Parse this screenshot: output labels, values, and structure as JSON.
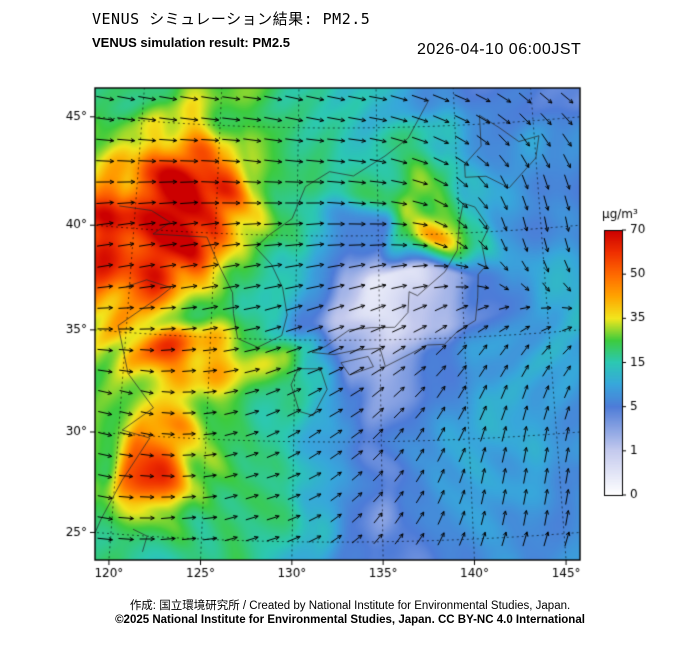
{
  "header": {
    "title_jp": "VENUS シミュレーション結果: PM2.5",
    "title_en": "VENUS simulation result: PM2.5",
    "datetime": "2026-04-10 06:00JST"
  },
  "footer": {
    "credit": "作成: 国立環境研究所 / Created by National Institute for Environmental Studies, Japan.",
    "license": "©2025 National Institute for Environmental Studies, Japan. CC BY-NC 4.0 International"
  },
  "colorbar": {
    "unit": "μg/m³",
    "levels": [
      0,
      1,
      5,
      15,
      35,
      50,
      70
    ]
  },
  "axes": {
    "lon_ticks": [
      120,
      125,
      130,
      135,
      140,
      145
    ],
    "lat_ticks": [
      25,
      30,
      35,
      40,
      45
    ],
    "degree_symbol": "°"
  },
  "map": {
    "projection": {
      "type": "lambert-conformal-conic",
      "lat1": 20,
      "lat2": 20,
      "lon0": 132.5,
      "lat0": 35
    },
    "extent": {
      "lon_min": 119.2,
      "lon_max": 145.8,
      "lat_min": 24.1,
      "lat_max": 46.8
    },
    "coastlines": [
      [
        [
          119,
          41
        ],
        [
          121,
          40.9
        ],
        [
          122.2,
          40.4
        ],
        [
          121.2,
          39.8
        ],
        [
          123.3,
          39.8
        ],
        [
          124.5,
          39.8
        ],
        [
          125.3,
          38.5
        ],
        [
          126.2,
          37.2
        ],
        [
          126.3,
          36.2
        ],
        [
          126.6,
          35
        ],
        [
          127.8,
          34.6
        ],
        [
          129.2,
          35.2
        ],
        [
          129.5,
          36.2
        ],
        [
          129.2,
          37.5
        ],
        [
          128.5,
          38.6
        ],
        [
          127.5,
          39.4
        ],
        [
          128.3,
          40
        ],
        [
          129.7,
          40.8
        ],
        [
          130.5,
          42.3
        ],
        [
          132,
          43
        ],
        [
          133.5,
          42.8
        ],
        [
          135.5,
          43.7
        ],
        [
          137,
          44.5
        ],
        [
          138.4,
          46.2
        ]
      ],
      [
        [
          119.8,
          37.2
        ],
        [
          121,
          37.6
        ],
        [
          122.5,
          37.3
        ],
        [
          121.8,
          36.8
        ],
        [
          119.5,
          35.3
        ],
        [
          120.3,
          33
        ],
        [
          121.9,
          31.4
        ],
        [
          120.2,
          30.2
        ],
        [
          121.8,
          29.9
        ],
        [
          120.4,
          27.7
        ],
        [
          119.4,
          25.7
        ],
        [
          118.9,
          24.4
        ]
      ],
      [
        [
          130.2,
          33.6
        ],
        [
          129.8,
          32.8
        ],
        [
          130.3,
          31.5
        ],
        [
          131.1,
          31.3
        ],
        [
          131.9,
          32.6
        ],
        [
          131.5,
          33.6
        ],
        [
          130.2,
          33.6
        ]
      ],
      [
        [
          132.7,
          33.9
        ],
        [
          134.3,
          34.2
        ],
        [
          134.6,
          33.7
        ],
        [
          133.2,
          33.3
        ],
        [
          132.7,
          33.9
        ]
      ],
      [
        [
          131,
          34.4
        ],
        [
          132.3,
          34.3
        ],
        [
          133.5,
          34.5
        ],
        [
          135,
          34.6
        ],
        [
          135.3,
          33.7
        ],
        [
          136.8,
          34.3
        ],
        [
          137.8,
          34.7
        ],
        [
          138.8,
          34.7
        ],
        [
          139.6,
          35.3
        ],
        [
          140.7,
          35.8
        ],
        [
          140.9,
          36.9
        ],
        [
          141,
          38
        ],
        [
          141.5,
          38.4
        ],
        [
          141.3,
          39.5
        ],
        [
          141.8,
          40.2
        ],
        [
          141,
          41.2
        ],
        [
          140.3,
          41.4
        ],
        [
          140,
          40.5
        ],
        [
          139.8,
          39.2
        ],
        [
          139,
          38.2
        ],
        [
          137.3,
          37.1
        ],
        [
          136.8,
          37.3
        ],
        [
          136.7,
          36.3
        ],
        [
          135.9,
          35.6
        ],
        [
          134.5,
          35.6
        ],
        [
          133.2,
          35.5
        ],
        [
          131.8,
          34.7
        ],
        [
          131,
          34.4
        ]
      ],
      [
        [
          140.5,
          42.6
        ],
        [
          141.8,
          42.6
        ],
        [
          143.2,
          42
        ],
        [
          145,
          43.3
        ],
        [
          145.3,
          44.3
        ],
        [
          144,
          44.1
        ],
        [
          142.8,
          44.8
        ],
        [
          141.6,
          45.4
        ],
        [
          141.6,
          44
        ],
        [
          140.5,
          43.2
        ],
        [
          140.5,
          42.6
        ]
      ],
      [
        [
          121.2,
          25.3
        ],
        [
          122,
          25
        ],
        [
          121.8,
          24.2
        ]
      ]
    ]
  },
  "chart_data": {
    "type": "heatmap",
    "title": "VENUS simulation result: PM2.5",
    "datetime": "2026-04-10 06:00JST",
    "units": "μg/m³",
    "grid": {
      "lon_start": 119,
      "lon_step": 2,
      "lat_start": 24,
      "lat_step": 2,
      "ncols": 15,
      "nrows": 12,
      "row_order": "south-to-north"
    },
    "pm25": {
      "name": "PM2.5 concentration",
      "values": [
        [
          20,
          18,
          16,
          18,
          20,
          15,
          10,
          6,
          4,
          5,
          7,
          8,
          6,
          8,
          10
        ],
        [
          24,
          32,
          28,
          20,
          22,
          18,
          12,
          5,
          3,
          5,
          8,
          10,
          8,
          6,
          8
        ],
        [
          28,
          55,
          68,
          32,
          22,
          18,
          14,
          8,
          4,
          6,
          8,
          10,
          10,
          8,
          6
        ],
        [
          24,
          42,
          48,
          30,
          22,
          17,
          12,
          8,
          5,
          7,
          9,
          11,
          10,
          8,
          8
        ],
        [
          28,
          33,
          30,
          27,
          24,
          19,
          11,
          5,
          3,
          4,
          7,
          10,
          12,
          10,
          8
        ],
        [
          33,
          44,
          52,
          45,
          38,
          26,
          13,
          3,
          2,
          3,
          5,
          8,
          10,
          12,
          10
        ],
        [
          46,
          40,
          30,
          24,
          19,
          13,
          5,
          1,
          0.5,
          1,
          2,
          4,
          7,
          10,
          12
        ],
        [
          56,
          60,
          44,
          30,
          24,
          16,
          9,
          2,
          0.5,
          0.5,
          2,
          5,
          8,
          10,
          10
        ],
        [
          64,
          70,
          66,
          54,
          34,
          22,
          10,
          5,
          6,
          28,
          46,
          16,
          8,
          6,
          7
        ],
        [
          46,
          62,
          70,
          58,
          33,
          24,
          18,
          16,
          20,
          34,
          26,
          13,
          9,
          7,
          6
        ],
        [
          26,
          42,
          52,
          40,
          27,
          22,
          20,
          18,
          15,
          18,
          13,
          9,
          7,
          9,
          7
        ],
        [
          18,
          23,
          29,
          27,
          24,
          20,
          18,
          15,
          12,
          10,
          8,
          6,
          5,
          5,
          4
        ]
      ]
    },
    "wind": {
      "name": "wind vectors (u eastward, v northward)",
      "u": [
        [
          8,
          8,
          8,
          7,
          6,
          6,
          6,
          5,
          4,
          4,
          3,
          3,
          3,
          3,
          3
        ],
        [
          8,
          8,
          7,
          7,
          6,
          6,
          6,
          5,
          4,
          4,
          3,
          2,
          2,
          2,
          3
        ],
        [
          7,
          7,
          6,
          6,
          6,
          6,
          6,
          5,
          5,
          4,
          3,
          2,
          2,
          2,
          2
        ],
        [
          7,
          6,
          6,
          6,
          6,
          6,
          6,
          6,
          5,
          4,
          4,
          3,
          2,
          2,
          2
        ],
        [
          7,
          6,
          6,
          6,
          7,
          7,
          7,
          7,
          6,
          5,
          4,
          4,
          3,
          3,
          3
        ],
        [
          8,
          7,
          7,
          7,
          8,
          8,
          8,
          8,
          7,
          6,
          5,
          4,
          4,
          4,
          4
        ],
        [
          8,
          8,
          8,
          8,
          9,
          9,
          9,
          9,
          8,
          7,
          6,
          5,
          4,
          4,
          4
        ],
        [
          8,
          8,
          9,
          9,
          9,
          10,
          10,
          9,
          9,
          8,
          7,
          5,
          3,
          2,
          2
        ],
        [
          9,
          9,
          10,
          10,
          10,
          10,
          10,
          9,
          9,
          8,
          6,
          4,
          2,
          1,
          1
        ],
        [
          10,
          10,
          10,
          10,
          10,
          10,
          10,
          10,
          9,
          8,
          7,
          5,
          3,
          2,
          2
        ],
        [
          10,
          10,
          10,
          10,
          10,
          10,
          10,
          10,
          9,
          9,
          8,
          7,
          5,
          4,
          4
        ],
        [
          10,
          10,
          10,
          10,
          10,
          10,
          10,
          10,
          10,
          9,
          9,
          8,
          7,
          6,
          6
        ]
      ],
      "v": [
        [
          0,
          0,
          1,
          1,
          2,
          2,
          3,
          3,
          4,
          5,
          6,
          7,
          7,
          7,
          7
        ],
        [
          -1,
          0,
          1,
          1,
          2,
          2,
          3,
          4,
          5,
          6,
          7,
          7,
          8,
          8,
          7
        ],
        [
          -1,
          0,
          0,
          1,
          2,
          2,
          3,
          4,
          5,
          6,
          7,
          8,
          8,
          8,
          7
        ],
        [
          -1,
          -1,
          0,
          1,
          2,
          3,
          4,
          4,
          5,
          6,
          7,
          8,
          8,
          7,
          6
        ],
        [
          -1,
          -1,
          0,
          1,
          2,
          3,
          4,
          4,
          5,
          5,
          6,
          7,
          7,
          6,
          5
        ],
        [
          0,
          0,
          1,
          1,
          2,
          3,
          3,
          4,
          4,
          4,
          5,
          5,
          5,
          4,
          3
        ],
        [
          1,
          1,
          1,
          2,
          2,
          3,
          3,
          3,
          3,
          3,
          3,
          2,
          1,
          0,
          -1
        ],
        [
          2,
          2,
          2,
          2,
          2,
          2,
          2,
          2,
          2,
          1,
          0,
          -2,
          -4,
          -6,
          -6
        ],
        [
          2,
          2,
          2,
          2,
          1,
          1,
          1,
          0,
          0,
          -1,
          -3,
          -5,
          -7,
          -8,
          -8
        ],
        [
          1,
          1,
          1,
          0,
          0,
          0,
          0,
          -1,
          -1,
          -2,
          -4,
          -6,
          -7,
          -8,
          -8
        ],
        [
          0,
          0,
          0,
          0,
          -1,
          -1,
          -1,
          -1,
          -2,
          -3,
          -4,
          -5,
          -6,
          -7,
          -7
        ],
        [
          -1,
          -1,
          -1,
          -1,
          -1,
          -2,
          -2,
          -2,
          -2,
          -3,
          -4,
          -4,
          -5,
          -6,
          -6
        ]
      ]
    },
    "colormap": {
      "levels": [
        0,
        1,
        5,
        15,
        35,
        50,
        70
      ],
      "stops": [
        {
          "p": 0.0,
          "c": "#ffffff"
        },
        {
          "p": 0.1667,
          "c": "#c4caee"
        },
        {
          "p": 0.3333,
          "c": "#4e7cd8"
        },
        {
          "p": 0.4167,
          "c": "#38a8dc"
        },
        {
          "p": 0.5,
          "c": "#2cc8b4"
        },
        {
          "p": 0.5833,
          "c": "#3ecc3e"
        },
        {
          "p": 0.6667,
          "c": "#f2e71e"
        },
        {
          "p": 0.75,
          "c": "#ffa400"
        },
        {
          "p": 0.8333,
          "c": "#ff6a00"
        },
        {
          "p": 0.9167,
          "c": "#f03000"
        },
        {
          "p": 1.0,
          "c": "#cc0000"
        }
      ]
    }
  }
}
